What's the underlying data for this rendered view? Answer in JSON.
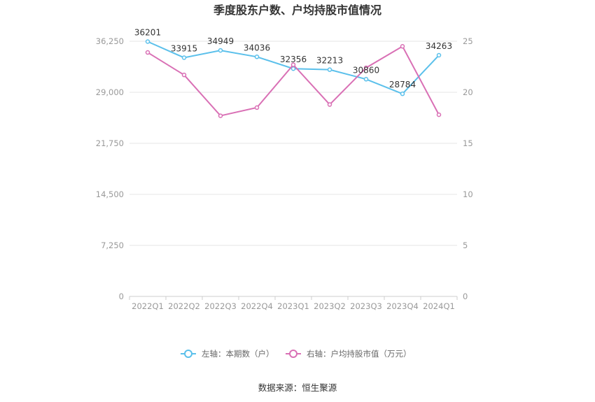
{
  "chart_data": {
    "type": "line",
    "title": "季度股东户数、户均持股市值情况",
    "categories": [
      "2022Q1",
      "2022Q2",
      "2022Q3",
      "2022Q4",
      "2023Q1",
      "2023Q2",
      "2023Q3",
      "2023Q4",
      "2024Q1"
    ],
    "left_axis": {
      "ticks": [
        "0",
        "7,250",
        "14,500",
        "21,750",
        "29,000",
        "36,250"
      ],
      "ylim": [
        0,
        36250
      ]
    },
    "right_axis": {
      "ticks": [
        "0",
        "5",
        "10",
        "15",
        "20",
        "25"
      ],
      "ylim": [
        0,
        25
      ]
    },
    "series": [
      {
        "name": "左轴：本期数（户）",
        "axis": "left",
        "color": "#5bc0eb",
        "values": [
          36201,
          33915,
          34949,
          34036,
          32356,
          32213,
          30860,
          28784,
          34263
        ],
        "labels": [
          "36201",
          "33915",
          "34949",
          "34036",
          "32356",
          "32213",
          "30860",
          "28784",
          "34263"
        ]
      },
      {
        "name": "右轴：户均持股市值（万元）",
        "axis": "right",
        "color": "#d970b5",
        "values": [
          23.9,
          21.7,
          17.7,
          18.5,
          22.7,
          18.8,
          22.4,
          24.5,
          17.8
        ]
      }
    ],
    "grid": true,
    "legend_position": "bottom"
  },
  "source": "数据来源：恒生聚源"
}
